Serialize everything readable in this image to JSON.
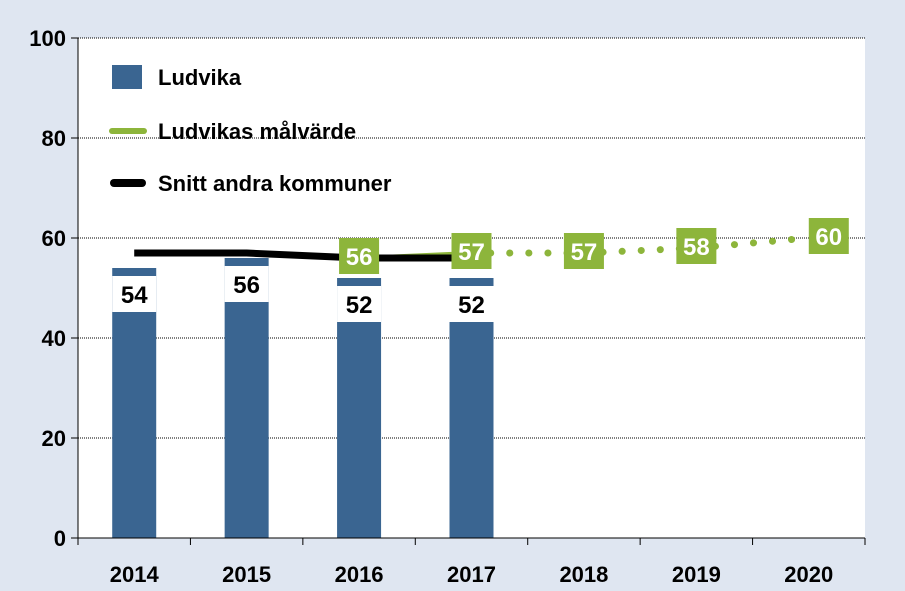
{
  "chart_data": {
    "type": "bar",
    "categories": [
      "2014",
      "2015",
      "2016",
      "2017",
      "2018",
      "2019",
      "2020"
    ],
    "ylim": [
      0,
      100
    ],
    "yticks": [
      "0",
      "20",
      "40",
      "60",
      "80",
      "100"
    ],
    "grid": true,
    "legend_position": "top-left",
    "series": [
      {
        "name": "Ludvika",
        "kind": "bar",
        "color": "#3a6591",
        "values": [
          54,
          56,
          52,
          52,
          null,
          null,
          null
        ],
        "labels": [
          "54",
          "56",
          "52",
          "52",
          "",
          "",
          ""
        ]
      },
      {
        "name": "Ludvikas målvärde",
        "kind": "line",
        "color": "#8db53b",
        "values": [
          null,
          null,
          56,
          57,
          57,
          58,
          60
        ],
        "labels": [
          "",
          "",
          "56",
          "57",
          "57",
          "58",
          "60"
        ]
      },
      {
        "name": "Snitt andra kommuner",
        "kind": "line",
        "color": "#000000",
        "values": [
          57,
          57,
          56,
          56,
          null,
          null,
          null
        ]
      }
    ]
  }
}
